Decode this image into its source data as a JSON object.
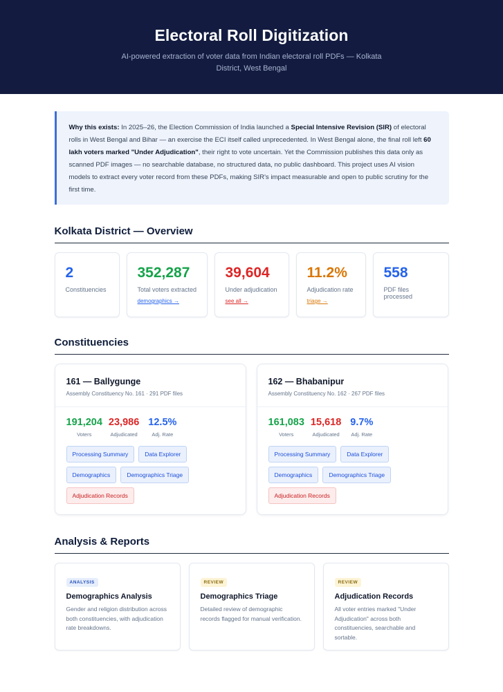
{
  "hero": {
    "title": "Electoral Roll Digitization",
    "subtitle": "AI-powered extraction of voter data from Indian electoral roll PDFs — Kolkata District, West Bengal"
  },
  "why": {
    "lead": "Why this exists:",
    "t1": " In 2025–26, the Election Commission of India launched a ",
    "b1": "Special Intensive Revision (SIR)",
    "t2": " of electoral rolls in West Bengal and Bihar — an exercise the ECI itself called unprecedented. In West Bengal alone, the final roll left ",
    "b2": "60 lakh voters marked \"Under Adjudication\"",
    "t3": ", their right to vote uncertain. Yet the Commission publishes this data only as scanned PDF images — no searchable database, no structured data, no public dashboard. This project uses AI vision models to extract every voter record from these PDFs, making SIR's impact measurable and open to public scrutiny for the first time."
  },
  "overview": {
    "title": "Kolkata District — Overview",
    "stats": [
      {
        "value": "2",
        "label": "Constituencies",
        "link": ""
      },
      {
        "value": "352,287",
        "label": "Total voters extracted",
        "link": "demographics →"
      },
      {
        "value": "39,604",
        "label": "Under adjudication",
        "link": "see all →"
      },
      {
        "value": "11.2%",
        "label": "Adjudication rate",
        "link": "triage →"
      },
      {
        "value": "558",
        "label": "PDF files processed",
        "link": ""
      }
    ]
  },
  "constituencies": {
    "title": "Constituencies",
    "items": [
      {
        "name": "161 — Ballygunge",
        "meta": "Assembly Constituency No. 161 · 291 PDF files",
        "voters": "191,204",
        "voters_label": "Voters",
        "adjudicated": "23,986",
        "adjudicated_label": "Adjudicated",
        "rate": "12.5%",
        "rate_label": "Adj. Rate",
        "buttons": [
          "Processing Summary",
          "Data Explorer",
          "Demographics",
          "Demographics Triage",
          "Adjudication Records"
        ]
      },
      {
        "name": "162 — Bhabanipur",
        "meta": "Assembly Constituency No. 162 · 267 PDF files",
        "voters": "161,083",
        "voters_label": "Voters",
        "adjudicated": "15,618",
        "adjudicated_label": "Adjudicated",
        "rate": "9.7%",
        "rate_label": "Adj. Rate",
        "buttons": [
          "Processing Summary",
          "Data Explorer",
          "Demographics",
          "Demographics Triage",
          "Adjudication Records"
        ]
      }
    ]
  },
  "analysis": {
    "title": "Analysis & Reports",
    "cards": [
      {
        "tag": "ANALYSIS",
        "title": "Demographics Analysis",
        "desc": "Gender and religion distribution across both constituencies, with adjudication rate breakdowns."
      },
      {
        "tag": "REVIEW",
        "title": "Demographics Triage",
        "desc": "Detailed review of demographic records flagged for manual verification."
      },
      {
        "tag": "REVIEW",
        "title": "Adjudication Records",
        "desc": "All voter entries marked \"Under Adjudication\" across both constituencies, searchable and sortable."
      }
    ]
  },
  "colors": {
    "hero_bg": "#131c40",
    "accent_blue": "#2563eb",
    "green": "#16a34a",
    "red": "#dc2626",
    "orange": "#d97706"
  }
}
